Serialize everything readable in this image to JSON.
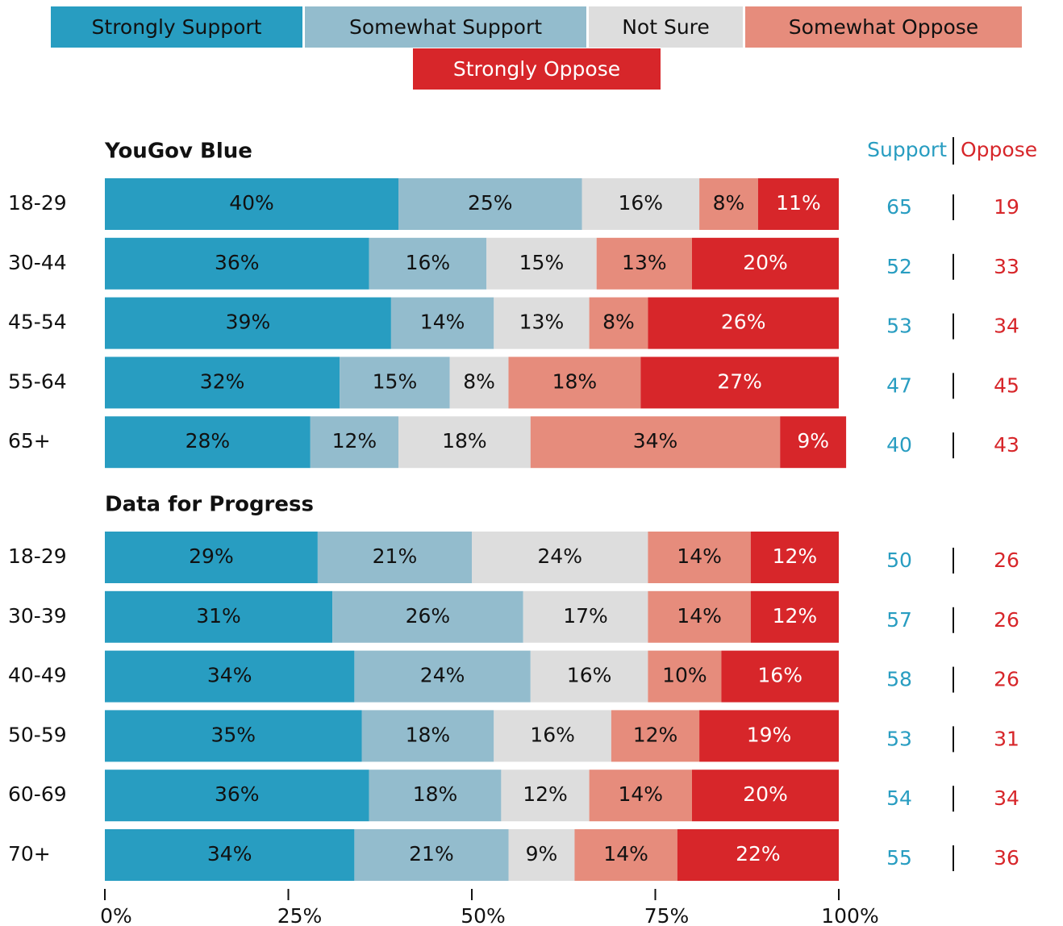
{
  "chart_data": {
    "type": "bar",
    "orientation": "horizontal",
    "stacked": true,
    "series": [
      {
        "name": "Strongly Support",
        "color": "#289dc1",
        "text_color": "#111111"
      },
      {
        "name": "Somewhat Support",
        "color": "#93bccd",
        "text_color": "#111111"
      },
      {
        "name": "Not Sure",
        "color": "#dddddd",
        "text_color": "#111111"
      },
      {
        "name": "Somewhat Oppose",
        "color": "#e68c7c",
        "text_color": "#111111"
      },
      {
        "name": "Strongly Oppose",
        "color": "#d7262a",
        "text_color": "#ffffff"
      }
    ],
    "support_header": "Support",
    "oppose_header": "Oppose",
    "support_color": "#289dc1",
    "oppose_color": "#d7262a",
    "groups": [
      {
        "title": "YouGov Blue",
        "categories": [
          "18-29",
          "30-44",
          "45-54",
          "55-64",
          "65+"
        ],
        "values": [
          [
            40,
            25,
            16,
            8,
            11
          ],
          [
            36,
            16,
            15,
            13,
            20
          ],
          [
            39,
            14,
            13,
            8,
            26
          ],
          [
            32,
            15,
            8,
            18,
            27
          ],
          [
            28,
            12,
            18,
            34,
            9
          ]
        ],
        "value_labels": [
          [
            "40%",
            "25%",
            "16%",
            "8%",
            "11%"
          ],
          [
            "36%",
            "16%",
            "15%",
            "13%",
            "20%"
          ],
          [
            "39%",
            "14%",
            "13%",
            "8%",
            "26%"
          ],
          [
            "32%",
            "15%",
            "8%",
            "18%",
            "27%"
          ],
          [
            "28%",
            "12%",
            "18%",
            "34%",
            "9%"
          ]
        ],
        "support": [
          65,
          52,
          53,
          47,
          40
        ],
        "oppose": [
          19,
          33,
          34,
          45,
          43
        ]
      },
      {
        "title": "Data for Progress",
        "categories": [
          "18-29",
          "30-39",
          "40-49",
          "50-59",
          "60-69",
          "70+"
        ],
        "values": [
          [
            29,
            21,
            24,
            14,
            12
          ],
          [
            31,
            26,
            17,
            14,
            12
          ],
          [
            34,
            24,
            16,
            10,
            16
          ],
          [
            35,
            18,
            16,
            12,
            19
          ],
          [
            36,
            18,
            12,
            14,
            20
          ],
          [
            34,
            21,
            9,
            14,
            22
          ]
        ],
        "value_labels": [
          [
            "29%",
            "21%",
            "24%",
            "14%",
            "12%"
          ],
          [
            "31%",
            "26%",
            "17%",
            "14%",
            "12%"
          ],
          [
            "34%",
            "24%",
            "16%",
            "10%",
            "16%"
          ],
          [
            "35%",
            "18%",
            "16%",
            "12%",
            "19%"
          ],
          [
            "36%",
            "18%",
            "12%",
            "14%",
            "20%"
          ],
          [
            "34%",
            "21%",
            "9%",
            "14%",
            "22%"
          ]
        ],
        "support": [
          50,
          57,
          58,
          53,
          54,
          55
        ],
        "oppose": [
          26,
          26,
          26,
          31,
          34,
          36
        ]
      }
    ],
    "xlim": [
      0,
      100
    ],
    "xticks": [
      {
        "value": 0,
        "label": "0%"
      },
      {
        "value": 25,
        "label": "25%"
      },
      {
        "value": 50,
        "label": "50%"
      },
      {
        "value": 75,
        "label": "75%"
      },
      {
        "value": 100,
        "label": "100%"
      }
    ]
  }
}
